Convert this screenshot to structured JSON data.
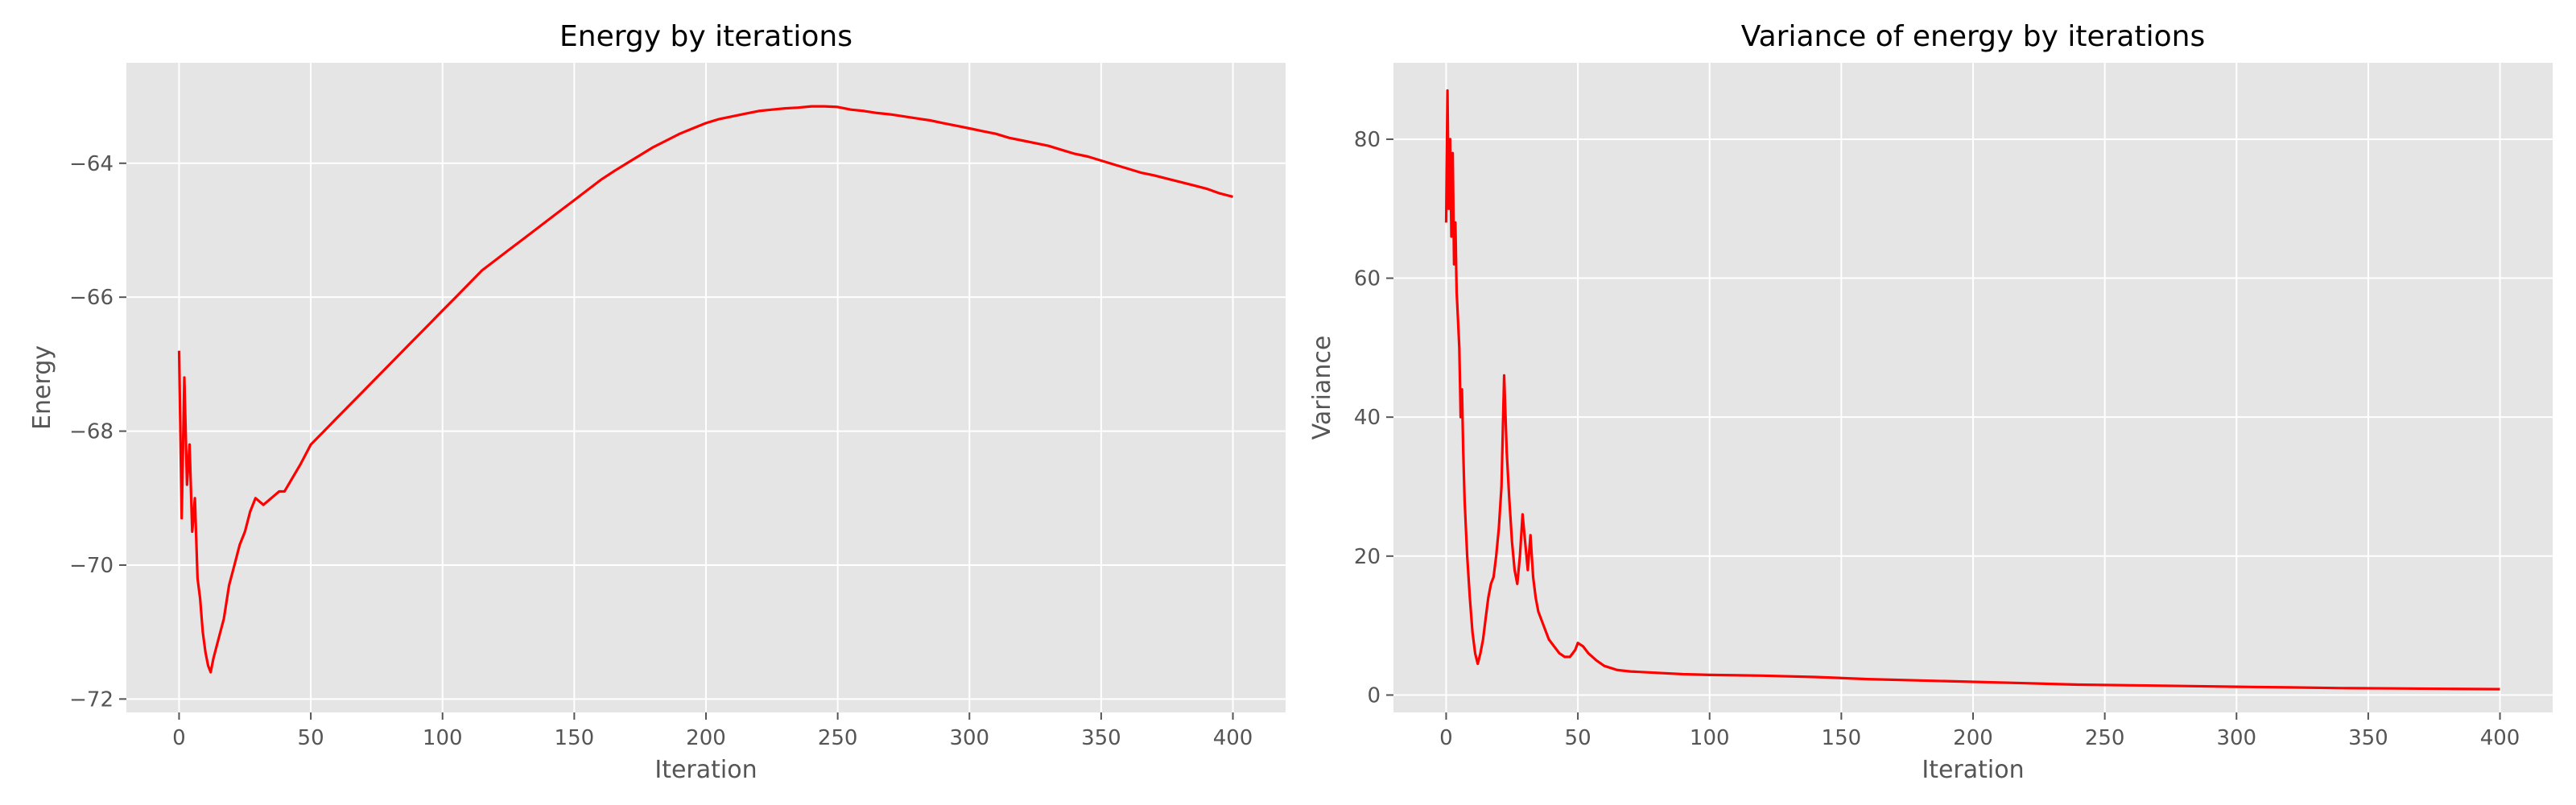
{
  "chart_data": [
    {
      "type": "line",
      "title": "Energy by iterations",
      "xlabel": "Iteration",
      "ylabel": "Energy",
      "xlim": [
        -20,
        420
      ],
      "ylim": [
        -72.2,
        -62.5
      ],
      "xticks": [
        0,
        50,
        100,
        150,
        200,
        250,
        300,
        350,
        400
      ],
      "yticks": [
        -72,
        -70,
        -68,
        -66,
        -64
      ],
      "grid": true,
      "series": [
        {
          "color": "#ff0000",
          "points": [
            [
              0,
              -66.8
            ],
            [
              1,
              -69.3
            ],
            [
              2,
              -67.2
            ],
            [
              3,
              -68.8
            ],
            [
              4,
              -68.2
            ],
            [
              5,
              -69.5
            ],
            [
              6,
              -69.0
            ],
            [
              7,
              -70.2
            ],
            [
              8,
              -70.5
            ],
            [
              9,
              -71.0
            ],
            [
              10,
              -71.3
            ],
            [
              11,
              -71.5
            ],
            [
              12,
              -71.6
            ],
            [
              13,
              -71.4
            ],
            [
              15,
              -71.1
            ],
            [
              17,
              -70.8
            ],
            [
              19,
              -70.3
            ],
            [
              21,
              -70.0
            ],
            [
              23,
              -69.7
            ],
            [
              25,
              -69.5
            ],
            [
              27,
              -69.2
            ],
            [
              29,
              -69.0
            ],
            [
              32,
              -69.1
            ],
            [
              35,
              -69.0
            ],
            [
              38,
              -68.9
            ],
            [
              40,
              -68.9
            ],
            [
              43,
              -68.7
            ],
            [
              46,
              -68.5
            ],
            [
              50,
              -68.2
            ],
            [
              55,
              -68.0
            ],
            [
              60,
              -67.8
            ],
            [
              65,
              -67.6
            ],
            [
              70,
              -67.4
            ],
            [
              75,
              -67.2
            ],
            [
              80,
              -67.0
            ],
            [
              85,
              -66.8
            ],
            [
              90,
              -66.6
            ],
            [
              95,
              -66.4
            ],
            [
              100,
              -66.2
            ],
            [
              105,
              -66.0
            ],
            [
              110,
              -65.8
            ],
            [
              115,
              -65.6
            ],
            [
              120,
              -65.45
            ],
            [
              125,
              -65.3
            ],
            [
              130,
              -65.15
            ],
            [
              135,
              -65.0
            ],
            [
              140,
              -64.85
            ],
            [
              145,
              -64.7
            ],
            [
              150,
              -64.55
            ],
            [
              155,
              -64.4
            ],
            [
              160,
              -64.25
            ],
            [
              165,
              -64.12
            ],
            [
              170,
              -64.0
            ],
            [
              175,
              -63.88
            ],
            [
              180,
              -63.76
            ],
            [
              185,
              -63.66
            ],
            [
              190,
              -63.56
            ],
            [
              195,
              -63.48
            ],
            [
              200,
              -63.4
            ],
            [
              205,
              -63.34
            ],
            [
              210,
              -63.3
            ],
            [
              215,
              -63.26
            ],
            [
              220,
              -63.22
            ],
            [
              225,
              -63.2
            ],
            [
              230,
              -63.18
            ],
            [
              235,
              -63.17
            ],
            [
              240,
              -63.15
            ],
            [
              245,
              -63.15
            ],
            [
              250,
              -63.16
            ],
            [
              255,
              -63.2
            ],
            [
              260,
              -63.22
            ],
            [
              265,
              -63.25
            ],
            [
              270,
              -63.27
            ],
            [
              275,
              -63.3
            ],
            [
              280,
              -63.33
            ],
            [
              285,
              -63.36
            ],
            [
              290,
              -63.4
            ],
            [
              295,
              -63.44
            ],
            [
              300,
              -63.48
            ],
            [
              305,
              -63.52
            ],
            [
              310,
              -63.56
            ],
            [
              315,
              -63.62
            ],
            [
              320,
              -63.66
            ],
            [
              325,
              -63.7
            ],
            [
              330,
              -63.74
            ],
            [
              335,
              -63.8
            ],
            [
              340,
              -63.86
            ],
            [
              345,
              -63.9
            ],
            [
              350,
              -63.96
            ],
            [
              355,
              -64.02
            ],
            [
              360,
              -64.08
            ],
            [
              365,
              -64.14
            ],
            [
              370,
              -64.18
            ],
            [
              375,
              -64.23
            ],
            [
              380,
              -64.28
            ],
            [
              385,
              -64.33
            ],
            [
              390,
              -64.38
            ],
            [
              395,
              -64.45
            ],
            [
              400,
              -64.5
            ]
          ]
        }
      ]
    },
    {
      "type": "line",
      "title": "Variance of energy by iterations",
      "xlabel": "Iteration",
      "ylabel": "Variance",
      "xlim": [
        -20,
        420
      ],
      "ylim": [
        -2.5,
        91
      ],
      "xticks": [
        0,
        50,
        100,
        150,
        200,
        250,
        300,
        350,
        400
      ],
      "yticks": [
        0,
        20,
        40,
        60,
        80
      ],
      "grid": true,
      "series": [
        {
          "color": "#ff0000",
          "points": [
            [
              0,
              68
            ],
            [
              0.5,
              87
            ],
            [
              1,
              70
            ],
            [
              1.5,
              80
            ],
            [
              2,
              66
            ],
            [
              2.5,
              78
            ],
            [
              3,
              62
            ],
            [
              3.5,
              68
            ],
            [
              4,
              58
            ],
            [
              4.5,
              54
            ],
            [
              5,
              50
            ],
            [
              5.5,
              40
            ],
            [
              6,
              44
            ],
            [
              6.5,
              35
            ],
            [
              7,
              28
            ],
            [
              8,
              20
            ],
            [
              9,
              14
            ],
            [
              10,
              9
            ],
            [
              11,
              6
            ],
            [
              12,
              4.5
            ],
            [
              13,
              6
            ],
            [
              14,
              8
            ],
            [
              15,
              11
            ],
            [
              16,
              14
            ],
            [
              17,
              16
            ],
            [
              18,
              17
            ],
            [
              19,
              20
            ],
            [
              20,
              24
            ],
            [
              21,
              30
            ],
            [
              22,
              46
            ],
            [
              23,
              35
            ],
            [
              24,
              28
            ],
            [
              25,
              22
            ],
            [
              26,
              18
            ],
            [
              27,
              16
            ],
            [
              28,
              20
            ],
            [
              29,
              26
            ],
            [
              30,
              22
            ],
            [
              31,
              18
            ],
            [
              32,
              23
            ],
            [
              33,
              17
            ],
            [
              34,
              14
            ],
            [
              35,
              12
            ],
            [
              37,
              10
            ],
            [
              39,
              8
            ],
            [
              41,
              7
            ],
            [
              43,
              6
            ],
            [
              45,
              5.5
            ],
            [
              47,
              5.5
            ],
            [
              49,
              6.5
            ],
            [
              50,
              7.5
            ],
            [
              52,
              7
            ],
            [
              54,
              6
            ],
            [
              57,
              5
            ],
            [
              60,
              4.2
            ],
            [
              65,
              3.6
            ],
            [
              70,
              3.4
            ],
            [
              80,
              3.2
            ],
            [
              90,
              3.0
            ],
            [
              100,
              2.9
            ],
            [
              120,
              2.8
            ],
            [
              140,
              2.6
            ],
            [
              160,
              2.3
            ],
            [
              180,
              2.1
            ],
            [
              200,
              1.9
            ],
            [
              220,
              1.7
            ],
            [
              240,
              1.5
            ],
            [
              260,
              1.4
            ],
            [
              280,
              1.3
            ],
            [
              300,
              1.2
            ],
            [
              320,
              1.1
            ],
            [
              340,
              1.0
            ],
            [
              360,
              0.95
            ],
            [
              380,
              0.9
            ],
            [
              400,
              0.85
            ]
          ]
        }
      ]
    }
  ]
}
